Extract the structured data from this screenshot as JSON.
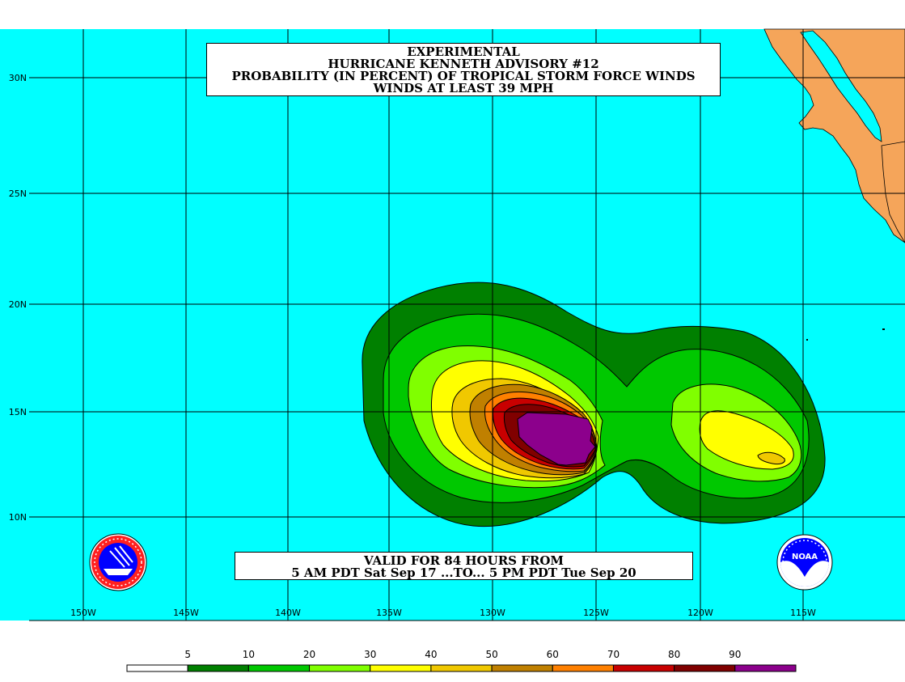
{
  "title": {
    "line1": "EXPERIMENTAL",
    "line2": "HURRICANE KENNETH ADVISORY #12",
    "line3": "PROBABILITY (IN PERCENT) OF TROPICAL STORM FORCE WINDS",
    "line4": "WINDS AT LEAST 39 MPH"
  },
  "valid": {
    "line1": "VALID FOR 84 HOURS FROM",
    "line2": "5 AM PDT Sat Sep 17 ...TO... 5 PM PDT Tue Sep 20"
  },
  "lat_labels": [
    "30N",
    "25N",
    "20N",
    "15N",
    "10N"
  ],
  "lon_labels": [
    "150W",
    "145W",
    "140W",
    "135W",
    "130W",
    "125W",
    "120W",
    "115W"
  ],
  "legend": {
    "labels": [
      "5",
      "10",
      "20",
      "30",
      "40",
      "50",
      "60",
      "70",
      "80",
      "90"
    ],
    "colors": [
      "#ffffff",
      "#008000",
      "#00c800",
      "#80ff00",
      "#ffff00",
      "#f0c800",
      "#c08000",
      "#ff8000",
      "#c80000",
      "#800000",
      "#8c008c"
    ]
  },
  "colors": {
    "ocean": "#00ffff",
    "land": "#f5a55a",
    "grid": "#000000"
  },
  "logos": {
    "left": "nws-logo",
    "right": "noaa-logo",
    "noaa_text": "NOAA"
  }
}
